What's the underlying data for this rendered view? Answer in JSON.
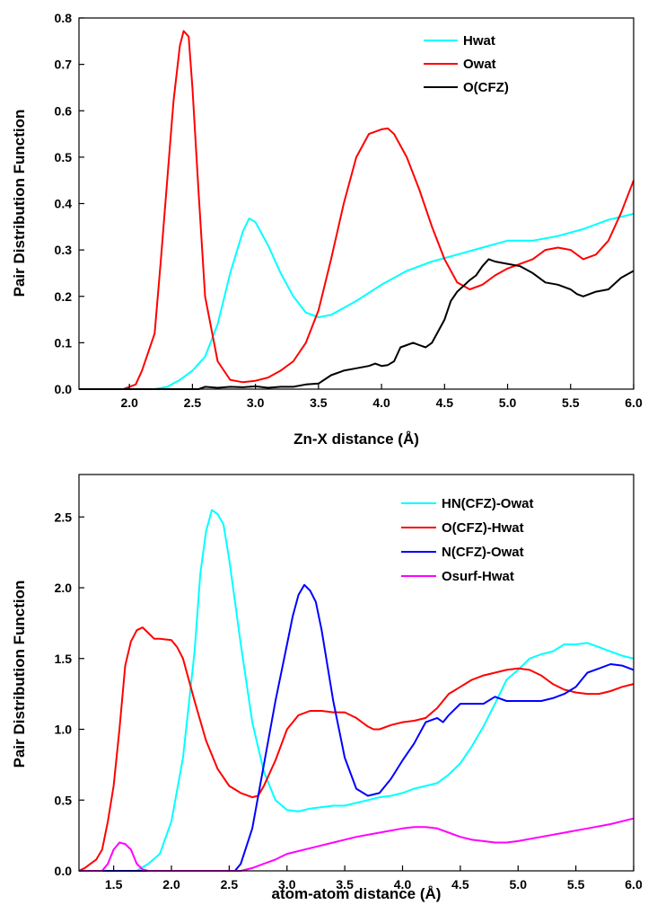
{
  "chart_data": [
    {
      "type": "line",
      "xlabel": "Zn-X distance (Å)",
      "ylabel": "Pair Distribution Function",
      "xlim": [
        1.6,
        6.0
      ],
      "ylim": [
        0,
        0.8
      ],
      "xticks": [
        2.0,
        2.5,
        3.0,
        3.5,
        4.0,
        4.5,
        5.0,
        5.5,
        6.0
      ],
      "xtick_labels": [
        "2.0",
        "2.5",
        "3.0",
        "3.5",
        "4.0",
        "4.5",
        "5.0",
        "5.5",
        "6.0"
      ],
      "yticks": [
        0.0,
        0.1,
        0.2,
        0.3,
        0.4,
        0.5,
        0.6,
        0.7,
        0.8
      ],
      "ytick_labels": [
        "0.0",
        "0.1",
        "0.2",
        "0.3",
        "0.4",
        "0.5",
        "0.6",
        "0.7",
        "0.8"
      ],
      "legend": "top-right",
      "grid": false,
      "series": [
        {
          "name": "Hwat",
          "color": "#00ffff",
          "x": [
            1.6,
            2.2,
            2.3,
            2.4,
            2.5,
            2.6,
            2.7,
            2.8,
            2.9,
            2.95,
            3.0,
            3.1,
            3.2,
            3.3,
            3.4,
            3.5,
            3.6,
            3.8,
            4.0,
            4.2,
            4.4,
            4.6,
            4.8,
            5.0,
            5.2,
            5.4,
            5.6,
            5.8,
            6.0
          ],
          "y": [
            0.0,
            0.0,
            0.005,
            0.02,
            0.04,
            0.07,
            0.14,
            0.25,
            0.34,
            0.368,
            0.36,
            0.31,
            0.25,
            0.2,
            0.165,
            0.155,
            0.16,
            0.19,
            0.225,
            0.255,
            0.275,
            0.29,
            0.305,
            0.32,
            0.32,
            0.33,
            0.345,
            0.365,
            0.378
          ]
        },
        {
          "name": "Owat",
          "color": "#ff0000",
          "x": [
            1.6,
            1.95,
            2.05,
            2.1,
            2.2,
            2.25,
            2.3,
            2.35,
            2.4,
            2.43,
            2.47,
            2.5,
            2.55,
            2.6,
            2.7,
            2.8,
            2.9,
            3.0,
            3.1,
            3.2,
            3.3,
            3.4,
            3.5,
            3.6,
            3.7,
            3.8,
            3.9,
            4.0,
            4.05,
            4.1,
            4.2,
            4.3,
            4.4,
            4.5,
            4.6,
            4.7,
            4.8,
            4.9,
            5.0,
            5.2,
            5.3,
            5.4,
            5.5,
            5.6,
            5.7,
            5.8,
            5.9,
            6.0
          ],
          "y": [
            0.0,
            0.0,
            0.01,
            0.04,
            0.12,
            0.28,
            0.45,
            0.62,
            0.74,
            0.772,
            0.76,
            0.65,
            0.42,
            0.2,
            0.06,
            0.02,
            0.015,
            0.018,
            0.025,
            0.04,
            0.06,
            0.1,
            0.17,
            0.28,
            0.4,
            0.5,
            0.55,
            0.56,
            0.562,
            0.55,
            0.5,
            0.43,
            0.35,
            0.28,
            0.23,
            0.215,
            0.225,
            0.245,
            0.26,
            0.28,
            0.3,
            0.305,
            0.3,
            0.28,
            0.29,
            0.32,
            0.38,
            0.45
          ]
        },
        {
          "name": "O(CFZ)",
          "color": "#000000",
          "x": [
            1.6,
            2.55,
            2.6,
            2.7,
            2.8,
            2.9,
            3.0,
            3.1,
            3.2,
            3.3,
            3.4,
            3.5,
            3.6,
            3.7,
            3.8,
            3.9,
            3.95,
            4.0,
            4.05,
            4.1,
            4.15,
            4.2,
            4.25,
            4.3,
            4.35,
            4.4,
            4.5,
            4.55,
            4.6,
            4.7,
            4.75,
            4.8,
            4.85,
            4.9,
            5.0,
            5.1,
            5.2,
            5.3,
            5.4,
            5.5,
            5.55,
            5.6,
            5.7,
            5.8,
            5.9,
            6.0
          ],
          "y": [
            0.0,
            0.0,
            0.005,
            0.003,
            0.005,
            0.004,
            0.006,
            0.003,
            0.005,
            0.005,
            0.01,
            0.012,
            0.03,
            0.04,
            0.045,
            0.05,
            0.055,
            0.05,
            0.052,
            0.06,
            0.09,
            0.095,
            0.1,
            0.095,
            0.09,
            0.1,
            0.15,
            0.19,
            0.21,
            0.235,
            0.245,
            0.265,
            0.28,
            0.275,
            0.27,
            0.265,
            0.25,
            0.23,
            0.225,
            0.215,
            0.205,
            0.2,
            0.21,
            0.215,
            0.24,
            0.255
          ]
        }
      ]
    },
    {
      "type": "line",
      "xlabel": "atom-atom distance (Å)",
      "ylabel": "Pair Distribution Function",
      "xlim": [
        1.2,
        6.0
      ],
      "ylim": [
        0,
        2.8
      ],
      "xticks": [
        1.5,
        2.0,
        2.5,
        3.0,
        3.5,
        4.0,
        4.5,
        5.0,
        5.5,
        6.0
      ],
      "xtick_labels": [
        "1.5",
        "2.0",
        "2.5",
        "3.0",
        "3.5",
        "4.0",
        "4.5",
        "5.0",
        "5.5",
        "6.0"
      ],
      "yticks": [
        0.0,
        0.5,
        1.0,
        1.5,
        2.0,
        2.5
      ],
      "ytick_labels": [
        "0.0",
        "0.5",
        "1.0",
        "1.5",
        "2.0",
        "2.5"
      ],
      "legend": "top-right",
      "grid": false,
      "series": [
        {
          "name": "HN(CFZ)-Owat",
          "color": "#00ffff",
          "x": [
            1.2,
            1.7,
            1.8,
            1.9,
            2.0,
            2.1,
            2.2,
            2.25,
            2.3,
            2.35,
            2.4,
            2.45,
            2.5,
            2.6,
            2.7,
            2.8,
            2.9,
            3.0,
            3.1,
            3.2,
            3.3,
            3.4,
            3.5,
            3.6,
            3.7,
            3.8,
            3.9,
            4.0,
            4.1,
            4.2,
            4.3,
            4.4,
            4.5,
            4.6,
            4.7,
            4.8,
            4.9,
            5.0,
            5.1,
            5.2,
            5.3,
            5.4,
            5.5,
            5.6,
            5.7,
            5.8,
            5.9,
            6.0
          ],
          "y": [
            0.0,
            0.0,
            0.05,
            0.12,
            0.35,
            0.8,
            1.55,
            2.1,
            2.4,
            2.55,
            2.52,
            2.45,
            2.2,
            1.6,
            1.05,
            0.7,
            0.5,
            0.43,
            0.42,
            0.44,
            0.45,
            0.46,
            0.46,
            0.48,
            0.5,
            0.52,
            0.53,
            0.55,
            0.58,
            0.6,
            0.62,
            0.68,
            0.76,
            0.88,
            1.02,
            1.18,
            1.35,
            1.42,
            1.5,
            1.53,
            1.55,
            1.6,
            1.6,
            1.61,
            1.58,
            1.55,
            1.52,
            1.5
          ]
        },
        {
          "name": "O(CFZ)-Hwat",
          "color": "#ff0000",
          "x": [
            1.2,
            1.25,
            1.3,
            1.35,
            1.4,
            1.45,
            1.5,
            1.55,
            1.6,
            1.65,
            1.7,
            1.75,
            1.8,
            1.85,
            1.9,
            2.0,
            2.05,
            2.1,
            2.2,
            2.3,
            2.4,
            2.5,
            2.6,
            2.7,
            2.75,
            2.8,
            2.9,
            3.0,
            3.1,
            3.2,
            3.3,
            3.4,
            3.5,
            3.6,
            3.7,
            3.75,
            3.8,
            3.9,
            4.0,
            4.1,
            4.2,
            4.3,
            4.4,
            4.5,
            4.6,
            4.7,
            4.8,
            4.9,
            5.0,
            5.1,
            5.2,
            5.3,
            5.4,
            5.5,
            5.6,
            5.7,
            5.8,
            5.9,
            6.0
          ],
          "y": [
            0.0,
            0.02,
            0.05,
            0.08,
            0.15,
            0.35,
            0.6,
            1.0,
            1.45,
            1.62,
            1.7,
            1.72,
            1.68,
            1.64,
            1.64,
            1.63,
            1.58,
            1.5,
            1.2,
            0.92,
            0.72,
            0.6,
            0.55,
            0.52,
            0.53,
            0.6,
            0.78,
            1.0,
            1.1,
            1.13,
            1.13,
            1.12,
            1.12,
            1.08,
            1.02,
            1.0,
            1.0,
            1.03,
            1.05,
            1.06,
            1.08,
            1.15,
            1.25,
            1.3,
            1.35,
            1.38,
            1.4,
            1.42,
            1.43,
            1.42,
            1.38,
            1.32,
            1.28,
            1.26,
            1.25,
            1.25,
            1.27,
            1.3,
            1.32
          ]
        },
        {
          "name": "N(CFZ)-Owat",
          "color": "#0000ff",
          "x": [
            1.2,
            2.55,
            2.6,
            2.7,
            2.8,
            2.9,
            3.0,
            3.05,
            3.1,
            3.15,
            3.2,
            3.25,
            3.3,
            3.4,
            3.5,
            3.6,
            3.7,
            3.8,
            3.9,
            4.0,
            4.1,
            4.2,
            4.3,
            4.35,
            4.4,
            4.5,
            4.6,
            4.7,
            4.8,
            4.9,
            5.0,
            5.1,
            5.2,
            5.3,
            5.4,
            5.5,
            5.6,
            5.7,
            5.8,
            5.9,
            6.0
          ],
          "y": [
            0.0,
            0.0,
            0.05,
            0.3,
            0.75,
            1.2,
            1.6,
            1.8,
            1.95,
            2.02,
            1.98,
            1.9,
            1.7,
            1.2,
            0.8,
            0.58,
            0.53,
            0.55,
            0.65,
            0.78,
            0.9,
            1.05,
            1.08,
            1.05,
            1.1,
            1.18,
            1.18,
            1.18,
            1.23,
            1.2,
            1.2,
            1.2,
            1.2,
            1.22,
            1.25,
            1.3,
            1.4,
            1.43,
            1.46,
            1.45,
            1.42
          ]
        },
        {
          "name": "Osurf-Hwat",
          "color": "#ff00ff",
          "x": [
            1.2,
            1.4,
            1.45,
            1.5,
            1.55,
            1.6,
            1.65,
            1.7,
            1.75,
            1.8,
            2.6,
            2.7,
            2.8,
            2.9,
            3.0,
            3.2,
            3.4,
            3.6,
            3.8,
            4.0,
            4.1,
            4.2,
            4.3,
            4.4,
            4.5,
            4.6,
            4.7,
            4.8,
            4.9,
            5.0,
            5.2,
            5.4,
            5.6,
            5.8,
            6.0
          ],
          "y": [
            0.0,
            0.0,
            0.05,
            0.15,
            0.2,
            0.19,
            0.15,
            0.05,
            0.01,
            0.0,
            0.0,
            0.02,
            0.05,
            0.08,
            0.12,
            0.16,
            0.2,
            0.24,
            0.27,
            0.3,
            0.31,
            0.31,
            0.3,
            0.27,
            0.24,
            0.22,
            0.21,
            0.2,
            0.2,
            0.21,
            0.24,
            0.27,
            0.3,
            0.33,
            0.37
          ]
        }
      ]
    }
  ]
}
